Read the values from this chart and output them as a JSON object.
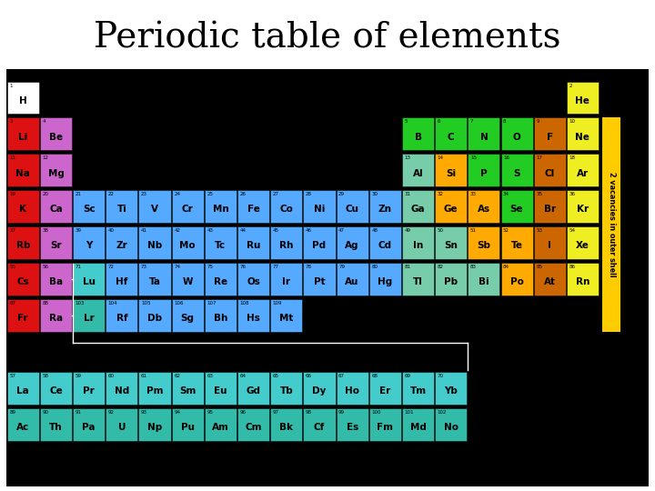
{
  "title": "Periodic table of elements",
  "title_fontsize": 28,
  "bg_color": "#000000",
  "border_color": "#cc0000",
  "text_rotation_label": "2 vacancies in outer shell",
  "colors": {
    "alkali": "#dd1111",
    "alkaline": "#cc66cc",
    "transition": "#55aaff",
    "post_transition": "#77ccaa",
    "metalloid": "#ffaa00",
    "nonmetal": "#22cc22",
    "halogen": "#cc6600",
    "noble": "#eeee22",
    "lanthanide": "#44cccc",
    "actinide": "#33bbaa",
    "hydrogen": "#ffffff"
  },
  "elements": [
    {
      "sym": "H",
      "num": 1,
      "col": 1,
      "row": 1,
      "color": "hydrogen"
    },
    {
      "sym": "He",
      "num": 2,
      "col": 18,
      "row": 1,
      "color": "noble"
    },
    {
      "sym": "Li",
      "num": 3,
      "col": 1,
      "row": 2,
      "color": "alkali"
    },
    {
      "sym": "Be",
      "num": 4,
      "col": 2,
      "row": 2,
      "color": "alkaline"
    },
    {
      "sym": "B",
      "num": 5,
      "col": 13,
      "row": 2,
      "color": "nonmetal"
    },
    {
      "sym": "C",
      "num": 6,
      "col": 14,
      "row": 2,
      "color": "nonmetal"
    },
    {
      "sym": "N",
      "num": 7,
      "col": 15,
      "row": 2,
      "color": "nonmetal"
    },
    {
      "sym": "O",
      "num": 8,
      "col": 16,
      "row": 2,
      "color": "nonmetal"
    },
    {
      "sym": "F",
      "num": 9,
      "col": 17,
      "row": 2,
      "color": "halogen"
    },
    {
      "sym": "Ne",
      "num": 10,
      "col": 18,
      "row": 2,
      "color": "noble"
    },
    {
      "sym": "Na",
      "num": 11,
      "col": 1,
      "row": 3,
      "color": "alkali"
    },
    {
      "sym": "Mg",
      "num": 12,
      "col": 2,
      "row": 3,
      "color": "alkaline"
    },
    {
      "sym": "Al",
      "num": 13,
      "col": 13,
      "row": 3,
      "color": "post_transition"
    },
    {
      "sym": "Si",
      "num": 14,
      "col": 14,
      "row": 3,
      "color": "metalloid"
    },
    {
      "sym": "P",
      "num": 15,
      "col": 15,
      "row": 3,
      "color": "nonmetal"
    },
    {
      "sym": "S",
      "num": 16,
      "col": 16,
      "row": 3,
      "color": "nonmetal"
    },
    {
      "sym": "Cl",
      "num": 17,
      "col": 17,
      "row": 3,
      "color": "halogen"
    },
    {
      "sym": "Ar",
      "num": 18,
      "col": 18,
      "row": 3,
      "color": "noble"
    },
    {
      "sym": "K",
      "num": 19,
      "col": 1,
      "row": 4,
      "color": "alkali"
    },
    {
      "sym": "Ca",
      "num": 20,
      "col": 2,
      "row": 4,
      "color": "alkaline"
    },
    {
      "sym": "Sc",
      "num": 21,
      "col": 3,
      "row": 4,
      "color": "transition"
    },
    {
      "sym": "Ti",
      "num": 22,
      "col": 4,
      "row": 4,
      "color": "transition"
    },
    {
      "sym": "V",
      "num": 23,
      "col": 5,
      "row": 4,
      "color": "transition"
    },
    {
      "sym": "Cr",
      "num": 24,
      "col": 6,
      "row": 4,
      "color": "transition"
    },
    {
      "sym": "Mn",
      "num": 25,
      "col": 7,
      "row": 4,
      "color": "transition"
    },
    {
      "sym": "Fe",
      "num": 26,
      "col": 8,
      "row": 4,
      "color": "transition"
    },
    {
      "sym": "Co",
      "num": 27,
      "col": 9,
      "row": 4,
      "color": "transition"
    },
    {
      "sym": "Ni",
      "num": 28,
      "col": 10,
      "row": 4,
      "color": "transition"
    },
    {
      "sym": "Cu",
      "num": 29,
      "col": 11,
      "row": 4,
      "color": "transition"
    },
    {
      "sym": "Zn",
      "num": 30,
      "col": 12,
      "row": 4,
      "color": "transition"
    },
    {
      "sym": "Ga",
      "num": 31,
      "col": 13,
      "row": 4,
      "color": "post_transition"
    },
    {
      "sym": "Ge",
      "num": 32,
      "col": 14,
      "row": 4,
      "color": "metalloid"
    },
    {
      "sym": "As",
      "num": 33,
      "col": 15,
      "row": 4,
      "color": "metalloid"
    },
    {
      "sym": "Se",
      "num": 34,
      "col": 16,
      "row": 4,
      "color": "nonmetal"
    },
    {
      "sym": "Br",
      "num": 35,
      "col": 17,
      "row": 4,
      "color": "halogen"
    },
    {
      "sym": "Kr",
      "num": 36,
      "col": 18,
      "row": 4,
      "color": "noble"
    },
    {
      "sym": "Rb",
      "num": 37,
      "col": 1,
      "row": 5,
      "color": "alkali"
    },
    {
      "sym": "Sr",
      "num": 38,
      "col": 2,
      "row": 5,
      "color": "alkaline"
    },
    {
      "sym": "Y",
      "num": 39,
      "col": 3,
      "row": 5,
      "color": "transition"
    },
    {
      "sym": "Zr",
      "num": 40,
      "col": 4,
      "row": 5,
      "color": "transition"
    },
    {
      "sym": "Nb",
      "num": 41,
      "col": 5,
      "row": 5,
      "color": "transition"
    },
    {
      "sym": "Mo",
      "num": 42,
      "col": 6,
      "row": 5,
      "color": "transition"
    },
    {
      "sym": "Tc",
      "num": 43,
      "col": 7,
      "row": 5,
      "color": "transition"
    },
    {
      "sym": "Ru",
      "num": 44,
      "col": 8,
      "row": 5,
      "color": "transition"
    },
    {
      "sym": "Rh",
      "num": 45,
      "col": 9,
      "row": 5,
      "color": "transition"
    },
    {
      "sym": "Pd",
      "num": 46,
      "col": 10,
      "row": 5,
      "color": "transition"
    },
    {
      "sym": "Ag",
      "num": 47,
      "col": 11,
      "row": 5,
      "color": "transition"
    },
    {
      "sym": "Cd",
      "num": 48,
      "col": 12,
      "row": 5,
      "color": "transition"
    },
    {
      "sym": "In",
      "num": 49,
      "col": 13,
      "row": 5,
      "color": "post_transition"
    },
    {
      "sym": "Sn",
      "num": 50,
      "col": 14,
      "row": 5,
      "color": "post_transition"
    },
    {
      "sym": "Sb",
      "num": 51,
      "col": 15,
      "row": 5,
      "color": "metalloid"
    },
    {
      "sym": "Te",
      "num": 52,
      "col": 16,
      "row": 5,
      "color": "metalloid"
    },
    {
      "sym": "I",
      "num": 53,
      "col": 17,
      "row": 5,
      "color": "halogen"
    },
    {
      "sym": "Xe",
      "num": 54,
      "col": 18,
      "row": 5,
      "color": "noble"
    },
    {
      "sym": "Cs",
      "num": 55,
      "col": 1,
      "row": 6,
      "color": "alkali"
    },
    {
      "sym": "Ba",
      "num": 56,
      "col": 2,
      "row": 6,
      "color": "alkaline"
    },
    {
      "sym": "Lu",
      "num": 71,
      "col": 3,
      "row": 6,
      "color": "lanthanide"
    },
    {
      "sym": "Hf",
      "num": 72,
      "col": 4,
      "row": 6,
      "color": "transition"
    },
    {
      "sym": "Ta",
      "num": 73,
      "col": 5,
      "row": 6,
      "color": "transition"
    },
    {
      "sym": "W",
      "num": 74,
      "col": 6,
      "row": 6,
      "color": "transition"
    },
    {
      "sym": "Re",
      "num": 75,
      "col": 7,
      "row": 6,
      "color": "transition"
    },
    {
      "sym": "Os",
      "num": 76,
      "col": 8,
      "row": 6,
      "color": "transition"
    },
    {
      "sym": "Ir",
      "num": 77,
      "col": 9,
      "row": 6,
      "color": "transition"
    },
    {
      "sym": "Pt",
      "num": 78,
      "col": 10,
      "row": 6,
      "color": "transition"
    },
    {
      "sym": "Au",
      "num": 79,
      "col": 11,
      "row": 6,
      "color": "transition"
    },
    {
      "sym": "Hg",
      "num": 80,
      "col": 12,
      "row": 6,
      "color": "transition"
    },
    {
      "sym": "Tl",
      "num": 81,
      "col": 13,
      "row": 6,
      "color": "post_transition"
    },
    {
      "sym": "Pb",
      "num": 82,
      "col": 14,
      "row": 6,
      "color": "post_transition"
    },
    {
      "sym": "Bi",
      "num": 83,
      "col": 15,
      "row": 6,
      "color": "post_transition"
    },
    {
      "sym": "Po",
      "num": 84,
      "col": 16,
      "row": 6,
      "color": "metalloid"
    },
    {
      "sym": "At",
      "num": 85,
      "col": 17,
      "row": 6,
      "color": "halogen"
    },
    {
      "sym": "Rn",
      "num": 86,
      "col": 18,
      "row": 6,
      "color": "noble"
    },
    {
      "sym": "Fr",
      "num": 87,
      "col": 1,
      "row": 7,
      "color": "alkali"
    },
    {
      "sym": "Ra",
      "num": 88,
      "col": 2,
      "row": 7,
      "color": "alkaline"
    },
    {
      "sym": "Lr",
      "num": 103,
      "col": 3,
      "row": 7,
      "color": "actinide"
    },
    {
      "sym": "Rf",
      "num": 104,
      "col": 4,
      "row": 7,
      "color": "transition"
    },
    {
      "sym": "Db",
      "num": 105,
      "col": 5,
      "row": 7,
      "color": "transition"
    },
    {
      "sym": "Sg",
      "num": 106,
      "col": 6,
      "row": 7,
      "color": "transition"
    },
    {
      "sym": "Bh",
      "num": 107,
      "col": 7,
      "row": 7,
      "color": "transition"
    },
    {
      "sym": "Hs",
      "num": 108,
      "col": 8,
      "row": 7,
      "color": "transition"
    },
    {
      "sym": "Mt",
      "num": 109,
      "col": 9,
      "row": 7,
      "color": "transition"
    },
    {
      "sym": "La",
      "num": 57,
      "col": 1,
      "row": 9,
      "color": "lanthanide"
    },
    {
      "sym": "Ce",
      "num": 58,
      "col": 2,
      "row": 9,
      "color": "lanthanide"
    },
    {
      "sym": "Pr",
      "num": 59,
      "col": 3,
      "row": 9,
      "color": "lanthanide"
    },
    {
      "sym": "Nd",
      "num": 60,
      "col": 4,
      "row": 9,
      "color": "lanthanide"
    },
    {
      "sym": "Pm",
      "num": 61,
      "col": 5,
      "row": 9,
      "color": "lanthanide"
    },
    {
      "sym": "Sm",
      "num": 62,
      "col": 6,
      "row": 9,
      "color": "lanthanide"
    },
    {
      "sym": "Eu",
      "num": 63,
      "col": 7,
      "row": 9,
      "color": "lanthanide"
    },
    {
      "sym": "Gd",
      "num": 64,
      "col": 8,
      "row": 9,
      "color": "lanthanide"
    },
    {
      "sym": "Tb",
      "num": 65,
      "col": 9,
      "row": 9,
      "color": "lanthanide"
    },
    {
      "sym": "Dy",
      "num": 66,
      "col": 10,
      "row": 9,
      "color": "lanthanide"
    },
    {
      "sym": "Ho",
      "num": 67,
      "col": 11,
      "row": 9,
      "color": "lanthanide"
    },
    {
      "sym": "Er",
      "num": 68,
      "col": 12,
      "row": 9,
      "color": "lanthanide"
    },
    {
      "sym": "Tm",
      "num": 69,
      "col": 13,
      "row": 9,
      "color": "lanthanide"
    },
    {
      "sym": "Yb",
      "num": 70,
      "col": 14,
      "row": 9,
      "color": "lanthanide"
    },
    {
      "sym": "Ac",
      "num": 89,
      "col": 1,
      "row": 10,
      "color": "actinide"
    },
    {
      "sym": "Th",
      "num": 90,
      "col": 2,
      "row": 10,
      "color": "actinide"
    },
    {
      "sym": "Pa",
      "num": 91,
      "col": 3,
      "row": 10,
      "color": "actinide"
    },
    {
      "sym": "U",
      "num": 92,
      "col": 4,
      "row": 10,
      "color": "actinide"
    },
    {
      "sym": "Np",
      "num": 93,
      "col": 5,
      "row": 10,
      "color": "actinide"
    },
    {
      "sym": "Pu",
      "num": 94,
      "col": 6,
      "row": 10,
      "color": "actinide"
    },
    {
      "sym": "Am",
      "num": 95,
      "col": 7,
      "row": 10,
      "color": "actinide"
    },
    {
      "sym": "Cm",
      "num": 96,
      "col": 8,
      "row": 10,
      "color": "actinide"
    },
    {
      "sym": "Bk",
      "num": 97,
      "col": 9,
      "row": 10,
      "color": "actinide"
    },
    {
      "sym": "Cf",
      "num": 98,
      "col": 10,
      "row": 10,
      "color": "actinide"
    },
    {
      "sym": "Es",
      "num": 99,
      "col": 11,
      "row": 10,
      "color": "actinide"
    },
    {
      "sym": "Fm",
      "num": 100,
      "col": 12,
      "row": 10,
      "color": "actinide"
    },
    {
      "sym": "Md",
      "num": 101,
      "col": 13,
      "row": 10,
      "color": "actinide"
    },
    {
      "sym": "No",
      "num": 102,
      "col": 14,
      "row": 10,
      "color": "actinide"
    }
  ],
  "vacancies_label": "2 vacancies in outer shell",
  "vacancies_color": "#ffcc00"
}
